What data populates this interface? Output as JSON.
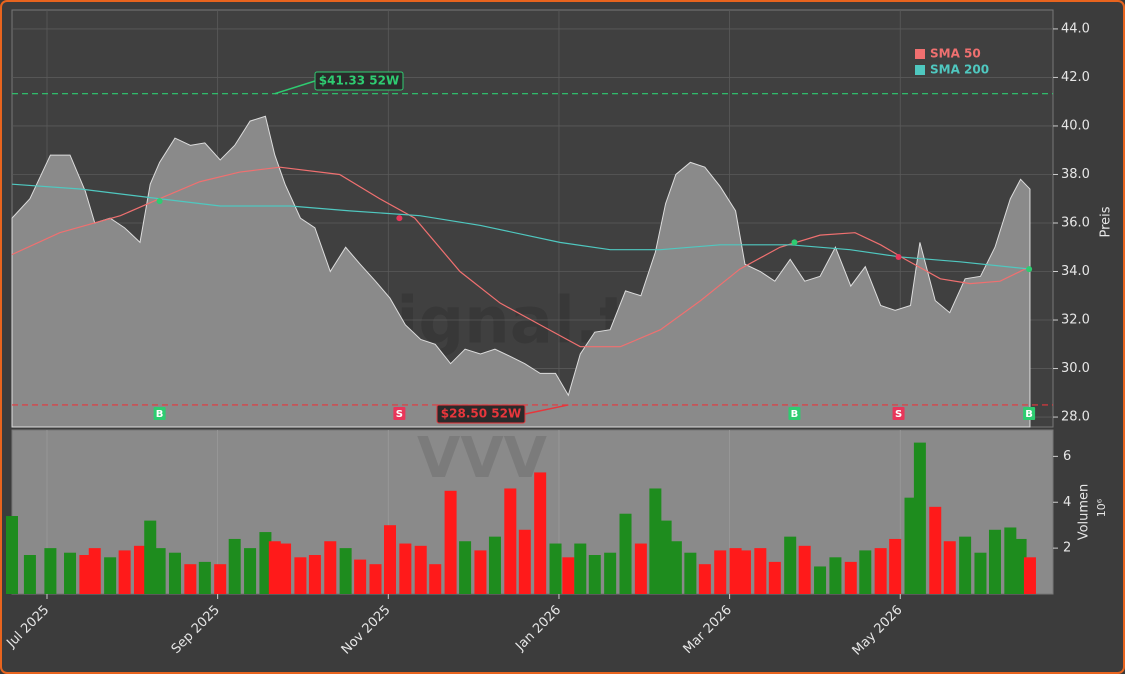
{
  "chart_data": {
    "type": "price-area",
    "watermark": "forexsignal.trade",
    "volume_watermark": "VVV",
    "y_label": "Preis",
    "volume_label": "Volumen",
    "volume_unit_label": "10⁶",
    "xlim": [
      6.59,
      18.79
    ],
    "xticks": [
      {
        "value": 7,
        "label": "Jul 2025"
      },
      {
        "value": 9,
        "label": "Sep 2025"
      },
      {
        "value": 11,
        "label": "Nov 2025"
      },
      {
        "value": 13,
        "label": "Jan 2026"
      },
      {
        "value": 15,
        "label": "Mar 2026"
      },
      {
        "value": 17,
        "label": "May 2026"
      }
    ],
    "ylim": [
      27.59,
      44.78
    ],
    "yticks": [
      {
        "value": 28,
        "label": "28.0"
      },
      {
        "value": 30,
        "label": "30.0"
      },
      {
        "value": 32,
        "label": "32.0"
      },
      {
        "value": 34,
        "label": "34.0"
      },
      {
        "value": 36,
        "label": "36.0"
      },
      {
        "value": 38,
        "label": "38.0"
      },
      {
        "value": 40,
        "label": "40.0"
      },
      {
        "value": 42,
        "label": "42.0"
      },
      {
        "value": 44,
        "label": "44.0"
      }
    ],
    "volume_ylim": [
      0,
      7.15
    ],
    "volume_yticks": [
      2,
      4,
      6
    ],
    "grid": true,
    "price": {
      "color": "#8a8a8a",
      "x": [
        6.59,
        6.8,
        7.04,
        7.27,
        7.45,
        7.56,
        7.74,
        7.91,
        8.09,
        8.21,
        8.32,
        8.5,
        8.68,
        8.85,
        9.03,
        9.2,
        9.38,
        9.56,
        9.67,
        9.79,
        9.97,
        10.14,
        10.32,
        10.5,
        10.67,
        10.85,
        11.02,
        11.2,
        11.38,
        11.55,
        11.73,
        11.9,
        12.08,
        12.25,
        12.43,
        12.6,
        12.78,
        12.96,
        13.11,
        13.25,
        13.42,
        13.6,
        13.78,
        13.96,
        14.13,
        14.25,
        14.37,
        14.54,
        14.71,
        14.89,
        15.07,
        15.18,
        15.36,
        15.53,
        15.71,
        15.88,
        16.06,
        16.24,
        16.42,
        16.59,
        16.77,
        16.94,
        17.12,
        17.23,
        17.41,
        17.58,
        17.76,
        17.94,
        18.11,
        18.29,
        18.41,
        18.52
      ],
      "close": [
        36.2,
        37.0,
        38.8,
        38.8,
        37.3,
        36.0,
        36.2,
        35.8,
        35.2,
        37.6,
        38.5,
        39.5,
        39.2,
        39.3,
        38.6,
        39.2,
        40.2,
        40.4,
        38.8,
        37.6,
        36.2,
        35.8,
        34.0,
        35.0,
        34.3,
        33.6,
        32.9,
        31.8,
        31.2,
        31.0,
        30.2,
        30.8,
        30.6,
        30.8,
        30.5,
        30.2,
        29.8,
        29.8,
        28.9,
        30.6,
        31.5,
        31.6,
        33.2,
        33.0,
        34.8,
        36.8,
        38.0,
        38.5,
        38.3,
        37.5,
        36.5,
        34.3,
        34.0,
        33.6,
        34.5,
        33.6,
        33.8,
        35.0,
        33.4,
        34.2,
        32.6,
        32.4,
        32.6,
        35.2,
        32.8,
        32.3,
        33.7,
        33.8,
        35.0,
        37.0,
        37.8,
        37.4
      ],
      "volume": [
        3.4,
        1.7,
        2.0,
        1.8,
        1.7,
        2.0,
        1.6,
        1.9,
        2.1,
        3.2,
        2.0,
        1.8,
        1.3,
        1.4,
        1.3,
        2.4,
        2.0,
        2.7,
        2.3,
        2.2,
        1.6,
        1.7,
        2.3,
        2.0,
        1.5,
        1.3,
        3.0,
        2.2,
        2.1,
        1.3,
        4.5,
        2.3,
        1.9,
        2.5,
        4.6,
        2.8,
        5.3,
        2.2,
        1.6,
        2.2,
        1.7,
        1.8,
        3.5,
        2.2,
        4.6,
        3.2,
        2.3,
        1.8,
        1.3,
        1.9,
        2.0,
        1.9,
        2.0,
        1.4,
        2.5,
        2.1,
        1.2,
        1.6,
        1.4,
        1.9,
        2.0,
        2.4,
        4.2,
        6.6,
        3.8,
        2.3,
        2.5,
        1.8,
        2.8,
        2.9,
        2.4,
        1.6
      ]
    },
    "volume_up_color": "#1e8c1e",
    "volume_down_color": "#ff1a1a",
    "series": [
      {
        "name": "SMA 50",
        "color": "#f07070",
        "x": [
          6.59,
          7.15,
          7.86,
          8.32,
          8.79,
          9.26,
          9.73,
          10.43,
          10.9,
          11.31,
          11.84,
          12.31,
          12.78,
          13.25,
          13.72,
          14.19,
          14.66,
          15.12,
          15.59,
          16.06,
          16.47,
          16.77,
          17.06,
          17.47,
          17.82,
          18.17,
          18.52
        ],
        "values": [
          34.7,
          35.6,
          36.3,
          37.0,
          37.7,
          38.1,
          38.3,
          38.0,
          37.0,
          36.2,
          34.0,
          32.7,
          31.8,
          30.9,
          30.9,
          31.6,
          32.8,
          34.1,
          35.0,
          35.5,
          35.6,
          35.1,
          34.5,
          33.7,
          33.5,
          33.6,
          34.2
        ]
      },
      {
        "name": "SMA 200",
        "color": "#4fc8c0",
        "x": [
          6.59,
          7.39,
          8.32,
          9.03,
          9.85,
          10.55,
          11.37,
          12.08,
          13.01,
          13.6,
          14.19,
          14.89,
          15.71,
          16.41,
          17.0,
          17.7,
          18.52
        ],
        "values": [
          37.6,
          37.4,
          37.0,
          36.7,
          36.7,
          36.5,
          36.3,
          35.9,
          35.2,
          34.9,
          34.9,
          35.1,
          35.1,
          34.9,
          34.6,
          34.4,
          34.1
        ]
      }
    ],
    "high": {
      "value": 41.33,
      "x": 9.67,
      "label": "$41.33 52W",
      "color": "#2ecc71"
    },
    "low": {
      "value": 28.5,
      "x": 13.11,
      "label": "$28.50 52W",
      "color": "#e8363c"
    },
    "signals": [
      {
        "x": 8.32,
        "level": 36.9,
        "label": "B",
        "color": "#2ecc71"
      },
      {
        "x": 11.13,
        "level": 36.2,
        "label": "S",
        "color": "#e8365a"
      },
      {
        "x": 15.76,
        "level": 35.2,
        "label": "B",
        "color": "#2ecc71"
      },
      {
        "x": 16.98,
        "level": 34.6,
        "label": "S",
        "color": "#e8365a"
      },
      {
        "x": 18.51,
        "level": 34.1,
        "label": "B",
        "color": "#2ecc71"
      }
    ]
  }
}
